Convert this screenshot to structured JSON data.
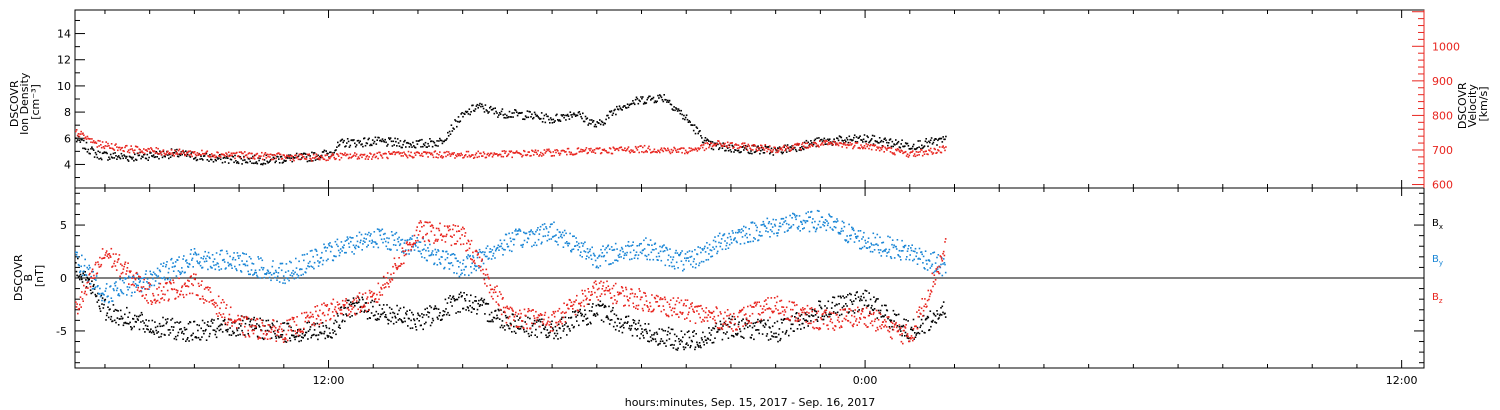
{
  "colors": {
    "axis": "#000000",
    "density": "#000000",
    "velocity": "#e8251f",
    "bx": "#000000",
    "by": "#1a86d6",
    "bz": "#e8251f"
  },
  "xaxis": {
    "label": "hours:minutes, Sep. 15, 2017 - Sep. 16, 2017",
    "range_hours": [
      6.33,
      36.5
    ],
    "major_ticks": [
      12,
      24,
      36
    ],
    "tick_labels": [
      "12:00",
      "0:00",
      "12:00"
    ],
    "data_end_hours": 25.8
  },
  "chart_data": [
    {
      "type": "scatter",
      "panel": "plasma",
      "y_label_lines": [
        "DSCOVR",
        "Ion Density",
        "[cm⁻³]"
      ],
      "y2_label_lines": [
        "DSCOVR",
        "Velocity",
        "[km/s]"
      ],
      "ylim": [
        2.2,
        15.8
      ],
      "y_ticks": [
        4,
        6,
        8,
        10,
        12,
        14
      ],
      "y_tick_labels": [
        "4",
        "6",
        "8",
        "10",
        "12",
        "14"
      ],
      "y2lim": [
        590,
        1105
      ],
      "y2_ticks": [
        600,
        700,
        800,
        900,
        1000
      ],
      "y2_tick_labels": [
        "600",
        "700",
        "800",
        "900",
        "1000"
      ],
      "series": [
        {
          "key": "density",
          "x": [
            6.33,
            6.8,
            7.5,
            8.5,
            9.5,
            10.5,
            11.5,
            12.0,
            12.3,
            13.0,
            14.0,
            14.5,
            14.9,
            15.3,
            15.8,
            16.5,
            17.0,
            17.5,
            18.0,
            18.5,
            19.0,
            19.5,
            20.0,
            20.5,
            21.0,
            21.5,
            22.0,
            23.0,
            24.0,
            25.0,
            25.8
          ],
          "values": [
            6.0,
            4.8,
            4.6,
            4.9,
            4.5,
            4.4,
            4.6,
            4.9,
            5.7,
            5.8,
            5.6,
            5.8,
            7.5,
            8.5,
            8.0,
            7.8,
            7.5,
            8.0,
            7.0,
            8.5,
            9.0,
            9.2,
            7.5,
            5.5,
            5.3,
            5.2,
            5.1,
            5.8,
            6.0,
            5.5,
            5.9
          ]
        },
        {
          "key": "velocity",
          "x": [
            6.33,
            6.8,
            7.5,
            8.5,
            9.5,
            10.5,
            11.5,
            12.0,
            12.3,
            13.0,
            14.0,
            15.0,
            16.0,
            17.0,
            18.0,
            19.0,
            20.0,
            20.7,
            21.0,
            22.0,
            23.0,
            24.0,
            25.0,
            25.8
          ],
          "values": [
            755,
            720,
            705,
            695,
            690,
            685,
            680,
            682,
            684,
            686,
            690,
            688,
            690,
            695,
            700,
            705,
            700,
            720,
            715,
            705,
            720,
            715,
            690,
            705
          ]
        }
      ]
    },
    {
      "type": "scatter",
      "panel": "field",
      "y_label_lines": [
        "DSCOVR",
        "B",
        "[nT]"
      ],
      "ylim": [
        -8.5,
        8.5
      ],
      "y_ticks": [
        -5,
        0,
        5
      ],
      "y_tick_labels": [
        "-5",
        "0",
        "5"
      ],
      "legend_placement": "right",
      "series": [
        {
          "key": "bx",
          "name": "B",
          "sub": "x",
          "x": [
            6.33,
            7.0,
            8.0,
            9.0,
            10.0,
            11.0,
            12.0,
            12.5,
            13.0,
            14.0,
            15.0,
            16.0,
            17.0,
            18.0,
            19.0,
            20.0,
            21.0,
            22.0,
            23.0,
            24.0,
            25.0,
            25.8
          ],
          "values": [
            1.5,
            -3.0,
            -4.5,
            -5.0,
            -4.5,
            -5.0,
            -5.0,
            -2.5,
            -3.0,
            -4.0,
            -2.0,
            -4.0,
            -5.0,
            -3.0,
            -5.0,
            -6.0,
            -4.5,
            -5.0,
            -3.0,
            -2.0,
            -5.0,
            -3.0
          ]
        },
        {
          "key": "by",
          "name": "B",
          "sub": "y",
          "x": [
            6.33,
            7.0,
            8.0,
            9.0,
            10.0,
            11.0,
            12.0,
            13.0,
            14.0,
            15.0,
            16.0,
            17.0,
            18.0,
            19.0,
            20.0,
            21.0,
            22.0,
            23.0,
            24.0,
            25.0,
            25.8
          ],
          "values": [
            2.0,
            -1.5,
            0.0,
            2.0,
            1.5,
            0.5,
            2.5,
            4.0,
            3.0,
            1.0,
            3.5,
            4.5,
            2.0,
            3.0,
            1.5,
            4.0,
            5.0,
            5.5,
            3.5,
            2.5,
            1.0
          ]
        },
        {
          "key": "bz",
          "name": "B",
          "sub": "z",
          "x": [
            6.33,
            7.0,
            8.0,
            9.0,
            10.0,
            11.0,
            12.0,
            13.0,
            14.0,
            15.0,
            16.0,
            17.0,
            18.0,
            19.0,
            20.0,
            21.0,
            22.0,
            23.0,
            24.0,
            25.0,
            25.8
          ],
          "values": [
            -3.0,
            2.5,
            -1.5,
            -0.5,
            -4.5,
            -5.0,
            -3.0,
            -2.0,
            4.5,
            4.0,
            -3.5,
            -4.0,
            -1.0,
            -2.0,
            -3.0,
            -4.0,
            -2.5,
            -4.0,
            -3.5,
            -5.5,
            3.0
          ]
        }
      ]
    }
  ]
}
